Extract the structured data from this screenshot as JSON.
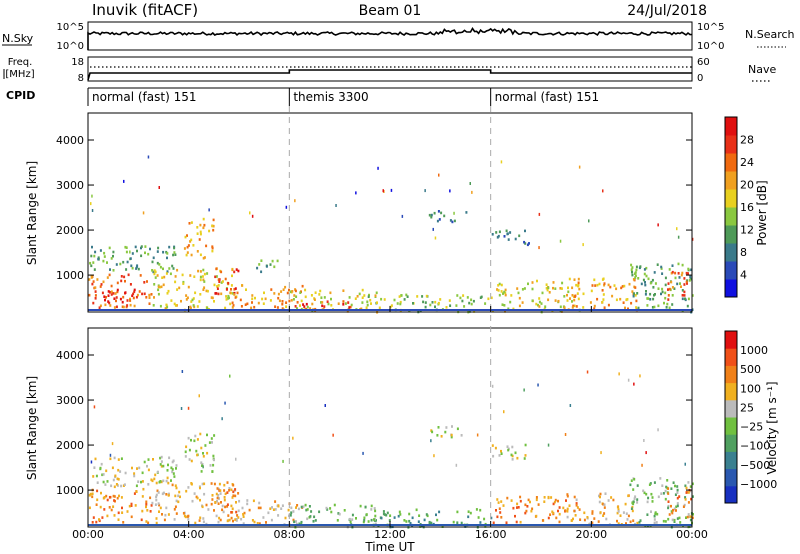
{
  "header": {
    "station": "Inuvik (fitACF)",
    "beam": "Beam 01",
    "date": "24/Jul/2018"
  },
  "top_panels": {
    "nsky_label": "N.Sky",
    "nsky_ticks": [
      "10^5",
      "10^0"
    ],
    "nsearch_label": "N.Search",
    "nsearch_ticks": [
      "10^5",
      "10^0"
    ],
    "freq_label_1": "Freq.",
    "freq_label_2": "[MHz]",
    "freq_ticks": [
      "18",
      "8"
    ],
    "nave_label": "Nave",
    "nave_ticks": [
      "60",
      "0"
    ],
    "cpid_label": "CPID",
    "cpid_segments": [
      {
        "label": "normal (fast) 151",
        "start_h": 0,
        "end_h": 8
      },
      {
        "label": "themis 3300",
        "start_h": 8,
        "end_h": 16
      },
      {
        "label": "normal (fast) 151",
        "start_h": 16,
        "end_h": 24
      }
    ]
  },
  "axes": {
    "y_label": "Slant Range [km]",
    "y_ticks": [
      "4000",
      "3000",
      "2000",
      "1000"
    ],
    "x_label": "Time UT",
    "x_ticks": [
      "00:00",
      "04:00",
      "08:00",
      "12:00",
      "16:00",
      "20:00",
      "00:00"
    ]
  },
  "power_scale": {
    "label": "Power [dB]",
    "ticks": [
      "28",
      "24",
      "20",
      "16",
      "12",
      "8",
      "4"
    ],
    "colors": [
      "#1010e0",
      "#2a4ab8",
      "#3a7a8a",
      "#4e9a58",
      "#8ac840",
      "#e8d020",
      "#f0a020",
      "#f06a10",
      "#e83018",
      "#e01010"
    ]
  },
  "velocity_scale": {
    "label": "Velocity [m s⁻¹]",
    "ticks": [
      "1000",
      "500",
      "100",
      "25",
      "−25",
      "−100",
      "−500",
      "−1000"
    ],
    "colors": [
      "#1830c0",
      "#2a58b0",
      "#3a8090",
      "#50a060",
      "#70c040",
      "#bbbbbb",
      "#f0b020",
      "#f08018",
      "#f05018",
      "#e01010"
    ]
  },
  "chart_data": {
    "type": "heatmap",
    "x_range_hours": [
      0,
      24
    ],
    "y_range_km": [
      180,
      4600
    ],
    "power_clusters": [
      {
        "t0": 0.0,
        "t1": 2.5,
        "r0": 300,
        "r1": 1050,
        "level": 7
      },
      {
        "t0": 0.3,
        "t1": 2.0,
        "r0": 350,
        "r1": 700,
        "level": 9
      },
      {
        "t0": 0.0,
        "t1": 3.5,
        "r0": 1100,
        "r1": 1700,
        "level": 3
      },
      {
        "t0": 2.5,
        "t1": 5.8,
        "r0": 250,
        "r1": 1200,
        "level": 5
      },
      {
        "t0": 3.8,
        "t1": 5.0,
        "r0": 1400,
        "r1": 2300,
        "level": 6
      },
      {
        "t0": 5.0,
        "t1": 6.0,
        "r0": 600,
        "r1": 1200,
        "level": 8
      },
      {
        "t0": 5.5,
        "t1": 8.5,
        "r0": 250,
        "r1": 800,
        "level": 6
      },
      {
        "t0": 6.5,
        "t1": 7.5,
        "r0": 1100,
        "r1": 1400,
        "level": 3
      },
      {
        "t0": 8.0,
        "t1": 11.5,
        "r0": 200,
        "r1": 700,
        "level": 5
      },
      {
        "t0": 8.2,
        "t1": 10.5,
        "r0": 250,
        "r1": 450,
        "level": 8
      },
      {
        "t0": 11.0,
        "t1": 16.0,
        "r0": 200,
        "r1": 600,
        "level": 4
      },
      {
        "t0": 13.5,
        "t1": 15.0,
        "r0": 2200,
        "r1": 2450,
        "level": 2
      },
      {
        "t0": 16.0,
        "t1": 17.5,
        "r0": 1700,
        "r1": 2050,
        "level": 2
      },
      {
        "t0": 16.0,
        "t1": 19.5,
        "r0": 200,
        "r1": 900,
        "level": 5
      },
      {
        "t0": 19.0,
        "t1": 21.8,
        "r0": 250,
        "r1": 950,
        "level": 6
      },
      {
        "t0": 21.5,
        "t1": 24.0,
        "r0": 200,
        "r1": 1300,
        "level": 3
      },
      {
        "t0": 23.0,
        "t1": 24.0,
        "r0": 400,
        "r1": 1100,
        "level": 7
      }
    ],
    "velocity_clusters": [
      {
        "t0": 0.0,
        "t1": 2.5,
        "r0": 300,
        "r1": 1050,
        "level": 7
      },
      {
        "t0": 0.0,
        "t1": 3.5,
        "r0": 1100,
        "r1": 1800,
        "level": 5
      },
      {
        "t0": 2.5,
        "t1": 5.8,
        "r0": 250,
        "r1": 1200,
        "level": 6
      },
      {
        "t0": 3.8,
        "t1": 5.0,
        "r0": 1400,
        "r1": 2300,
        "level": 5
      },
      {
        "t0": 5.0,
        "t1": 6.0,
        "r0": 500,
        "r1": 1200,
        "level": 7
      },
      {
        "t0": 5.5,
        "t1": 8.5,
        "r0": 250,
        "r1": 800,
        "level": 6
      },
      {
        "t0": 8.0,
        "t1": 11.5,
        "r0": 200,
        "r1": 700,
        "level": 4
      },
      {
        "t0": 11.0,
        "t1": 16.0,
        "r0": 200,
        "r1": 600,
        "level": 3
      },
      {
        "t0": 13.5,
        "t1": 15.0,
        "r0": 2200,
        "r1": 2450,
        "level": 5
      },
      {
        "t0": 16.0,
        "t1": 17.5,
        "r0": 1700,
        "r1": 2050,
        "level": 5
      },
      {
        "t0": 16.0,
        "t1": 19.5,
        "r0": 300,
        "r1": 900,
        "level": 7
      },
      {
        "t0": 19.0,
        "t1": 21.8,
        "r0": 250,
        "r1": 950,
        "level": 6
      },
      {
        "t0": 21.5,
        "t1": 24.0,
        "r0": 200,
        "r1": 1300,
        "level": 4
      },
      {
        "t0": 23.0,
        "t1": 24.0,
        "r0": 400,
        "r1": 1100,
        "level": 7
      }
    ]
  }
}
